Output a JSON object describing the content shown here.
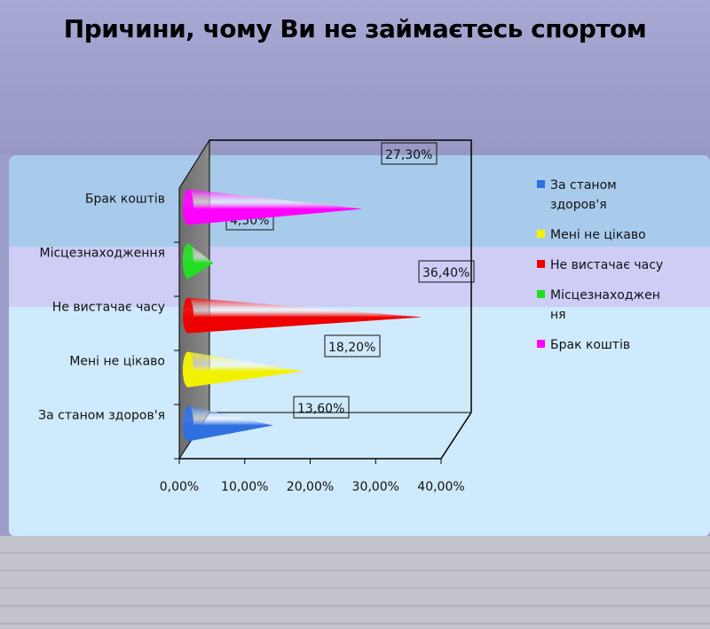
{
  "chart_data": {
    "type": "bar",
    "orientation": "horizontal",
    "title": "Причини, чому Ви не займаєтесь спортом",
    "xlabel": "",
    "ylabel": "",
    "xlim": [
      0,
      40
    ],
    "x_ticks": [
      "0,00%",
      "10,00%",
      "20,00%",
      "30,00%",
      "40,00%"
    ],
    "grid": false,
    "legend_position": "right",
    "categories": [
      "За станом здоров'я",
      "Мені не цікаво",
      "Не вистачає  часу",
      "Місцезнаходження",
      "Брак коштів"
    ],
    "values": [
      13.6,
      18.2,
      36.4,
      4.5,
      27.3
    ],
    "data_labels": [
      "13,60%",
      "18,20%",
      "36,40%",
      "4,50%",
      "27,30%"
    ],
    "colors": [
      "#2f6fe0",
      "#f2f200",
      "#ee0000",
      "#22dd22",
      "#ff00ff"
    ],
    "legend": [
      {
        "lines": [
          "За станом",
          "здоров'я"
        ],
        "color": "#2f6fe0"
      },
      {
        "lines": [
          "Мені не цікаво"
        ],
        "color": "#f2f200"
      },
      {
        "lines": [
          "Не вистачає  часу"
        ],
        "color": "#ee0000"
      },
      {
        "lines": [
          "Місцезнаходжен",
          "ня"
        ],
        "color": "#22dd22"
      },
      {
        "lines": [
          "Брак коштів"
        ],
        "color": "#ff00ff"
      }
    ]
  },
  "background_colors": {
    "top": "#9c9cc8",
    "band_blue": "#a8ccec",
    "band_lavender": "#ccccf6",
    "band_light": "#cde9fb",
    "bottom": "#bcbcc4"
  }
}
